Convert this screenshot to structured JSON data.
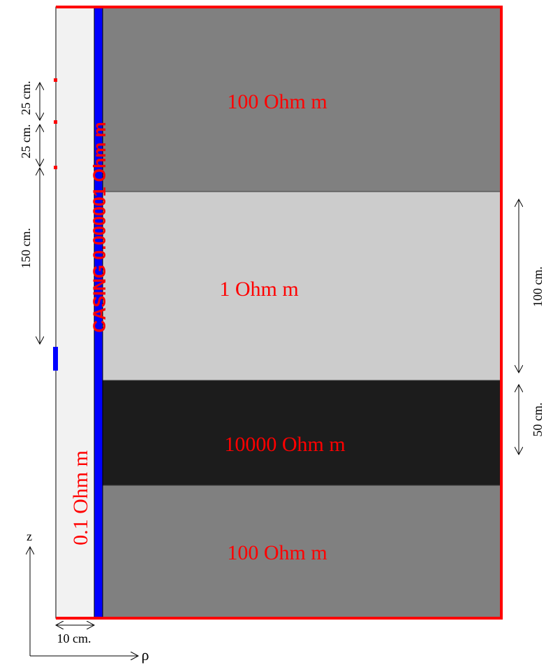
{
  "colors": {
    "background": "#ffffff",
    "borehole_fluid": "#f2f2f2",
    "casing": "#0000ff",
    "layer_top": "#808080",
    "layer_conductive": "#cccccc",
    "layer_resistive": "#1c1c1c",
    "layer_bottom": "#808080",
    "boundary": "#ff0000",
    "annotation_text": "#000000",
    "label_text": "#ff0000",
    "electrode_receiver": "#ff0000",
    "electrode_transmitter": "#0000ff"
  },
  "labels": {
    "layer_top": "100 Ohm m",
    "layer_conductive": "1 Ohm m",
    "layer_resistive": "10000 Ohm m",
    "layer_bottom": "100 Ohm m",
    "borehole_fluid": "0.1 Ohm m",
    "casing": "CASING 0.000001 Ohm m"
  },
  "dimensions": {
    "receiver_spacing_1": "25 cm.",
    "receiver_spacing_2": "25 cm.",
    "transmitter_spacing": "150 cm.",
    "conductive_layer_thickness": "100 cm.",
    "resistive_layer_thickness": "50 cm.",
    "borehole_radius": "10 cm."
  },
  "axes": {
    "z_label": "z",
    "rho_label": "ρ"
  }
}
